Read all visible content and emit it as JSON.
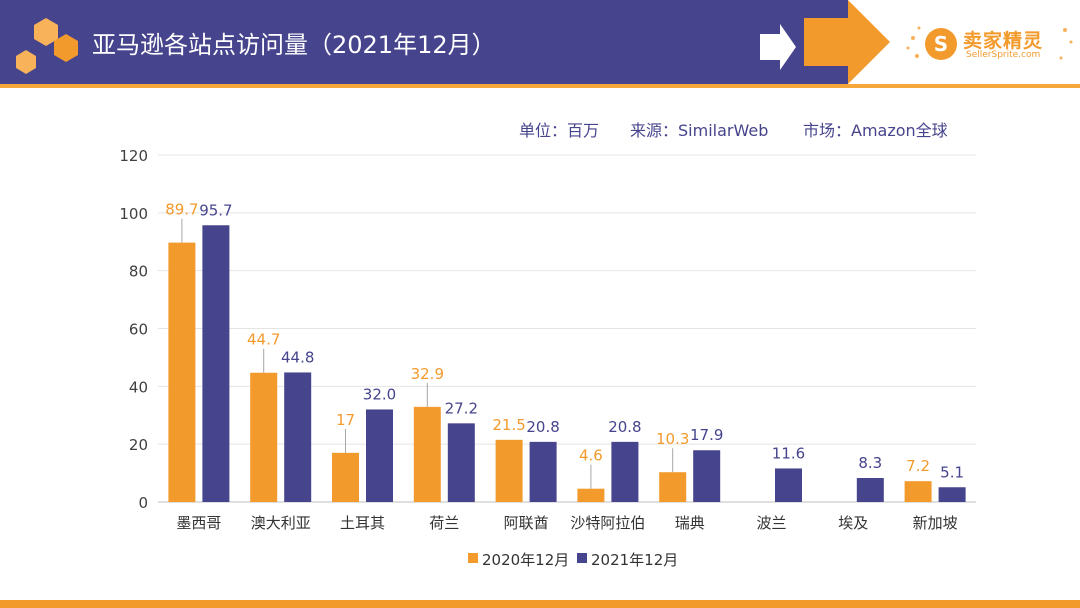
{
  "header": {
    "title": "亚马逊各站点访问量（2021年12月）",
    "bar_color": "#46448c",
    "accent_color": "#f39a2d"
  },
  "logo": {
    "name": "卖家精灵",
    "sub": "SellerSprite.com",
    "mark": "S"
  },
  "meta": {
    "unit": "单位：百万",
    "source": "来源：SimilarWeb",
    "market": "市场：Amazon全球"
  },
  "chart_data": {
    "type": "bar",
    "categories": [
      "墨西哥",
      "澳大利亚",
      "土耳其",
      "荷兰",
      "阿联酋",
      "沙特阿拉伯",
      "瑞典",
      "波兰",
      "埃及",
      "新加坡"
    ],
    "series": [
      {
        "name": "2020年12月",
        "color": "#f39a2d",
        "values": [
          89.7,
          44.7,
          17,
          32.9,
          21.5,
          4.6,
          10.3,
          null,
          null,
          7.2
        ],
        "labels": [
          "89.7",
          "44.7",
          "17",
          "32.9",
          "21.5",
          "4.6",
          "10.3",
          "",
          "",
          "7.2"
        ]
      },
      {
        "name": "2021年12月",
        "color": "#46448c",
        "values": [
          95.7,
          44.8,
          32.0,
          27.2,
          20.8,
          20.8,
          17.9,
          11.6,
          8.3,
          5.1
        ],
        "labels": [
          "95.7",
          "44.8",
          "32.0",
          "27.2",
          "20.8",
          "20.8",
          "17.9",
          "11.6",
          "8.3",
          "5.1"
        ]
      }
    ],
    "ylim": [
      0,
      120
    ],
    "yticks": [
      0,
      20,
      40,
      60,
      80,
      100,
      120
    ],
    "grid": true,
    "legend": "bottom",
    "title": "",
    "xlabel": "",
    "ylabel": ""
  }
}
